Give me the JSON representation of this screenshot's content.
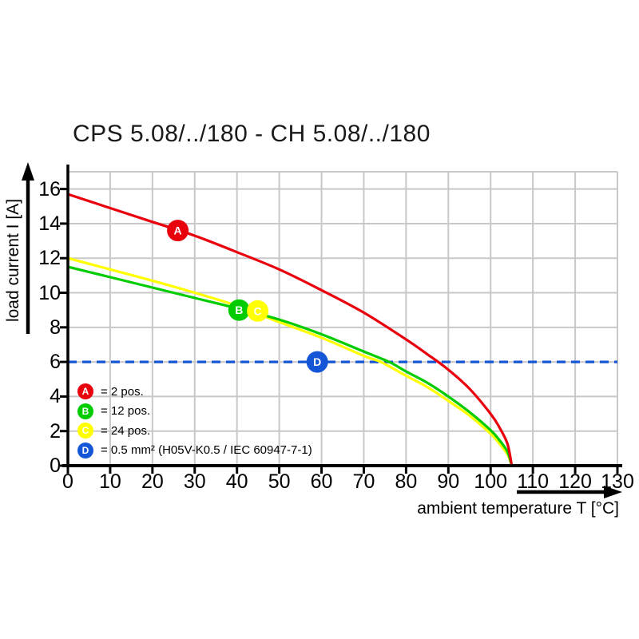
{
  "title": "CPS 5.08/../180 - CH 5.08/../180",
  "chart_data": {
    "type": "line",
    "title": "CPS 5.08/../180 - CH 5.08/../180",
    "xlabel": "ambient temperature T [°C]",
    "ylabel": "load current I [A]",
    "xlim": [
      0,
      130
    ],
    "ylim": [
      0,
      17
    ],
    "x_ticks": [
      0,
      10,
      20,
      30,
      40,
      50,
      60,
      70,
      80,
      90,
      100,
      110,
      120,
      130
    ],
    "y_ticks": [
      0,
      2,
      4,
      6,
      8,
      10,
      12,
      14,
      16
    ],
    "grid": true,
    "legend_position": "inside-lower-left",
    "series": [
      {
        "name": "A",
        "label": "2 pos.",
        "color": "#e8000d",
        "line_style": "solid",
        "points": [
          [
            0,
            15.7
          ],
          [
            10,
            14.9
          ],
          [
            20,
            14.1
          ],
          [
            30,
            13.3
          ],
          [
            40,
            12.35
          ],
          [
            50,
            11.35
          ],
          [
            60,
            10.15
          ],
          [
            70,
            8.85
          ],
          [
            80,
            7.3
          ],
          [
            85,
            6.45
          ],
          [
            90,
            5.55
          ],
          [
            95,
            4.45
          ],
          [
            100,
            3.0
          ],
          [
            102,
            2.25
          ],
          [
            104,
            1.25
          ],
          [
            105,
            0
          ]
        ]
      },
      {
        "name": "B",
        "label": "12 pos.",
        "color": "#00cc00",
        "line_style": "solid",
        "points": [
          [
            0,
            11.5
          ],
          [
            10,
            10.9
          ],
          [
            20,
            10.3
          ],
          [
            30,
            9.7
          ],
          [
            40,
            9.1
          ],
          [
            50,
            8.45
          ],
          [
            60,
            7.6
          ],
          [
            70,
            6.6
          ],
          [
            76,
            6.0
          ],
          [
            80,
            5.45
          ],
          [
            85,
            4.8
          ],
          [
            90,
            4.0
          ],
          [
            95,
            3.1
          ],
          [
            100,
            2.05
          ],
          [
            102,
            1.5
          ],
          [
            104,
            0.8
          ],
          [
            105,
            0
          ]
        ]
      },
      {
        "name": "C",
        "label": "24 pos.",
        "color": "#ffff00",
        "line_style": "solid",
        "points": [
          [
            0,
            12.0
          ],
          [
            10,
            11.35
          ],
          [
            20,
            10.7
          ],
          [
            30,
            10.0
          ],
          [
            40,
            9.25
          ],
          [
            50,
            8.3
          ],
          [
            60,
            7.4
          ],
          [
            70,
            6.35
          ],
          [
            74,
            6.0
          ],
          [
            80,
            5.2
          ],
          [
            85,
            4.55
          ],
          [
            90,
            3.75
          ],
          [
            95,
            2.9
          ],
          [
            100,
            1.85
          ],
          [
            102,
            1.3
          ],
          [
            104,
            0.65
          ],
          [
            105,
            0
          ]
        ]
      },
      {
        "name": "D",
        "label": "0.5 mm² (H05V-K0.5 / IEC 60947-7-1)",
        "color": "#1556d6",
        "line_style": "dashed",
        "points": [
          [
            0,
            6
          ],
          [
            130,
            6
          ]
        ]
      }
    ],
    "markers": [
      {
        "label": "A",
        "x": 26,
        "y": 13.6,
        "color": "#e8000d"
      },
      {
        "label": "B",
        "x": 40.5,
        "y": 9.0,
        "color": "#00cc00"
      },
      {
        "label": "C",
        "x": 44.9,
        "y": 8.95,
        "color": "#ffff00"
      },
      {
        "label": "D",
        "x": 59,
        "y": 6.0,
        "color": "#1556d6"
      }
    ],
    "legend": [
      {
        "key": "A",
        "color": "#e8000d",
        "text": "= 2 pos."
      },
      {
        "key": "B",
        "color": "#00cc00",
        "text": "= 12 pos."
      },
      {
        "key": "C",
        "color": "#ffff00",
        "text": "= 24 pos."
      },
      {
        "key": "D",
        "color": "#1556d6",
        "text": "= 0.5 mm² (H05V-K0.5 / IEC 60947-7-1)"
      }
    ],
    "colors": {
      "grid": "#c8c8c8",
      "axis": "#000000",
      "text": "#000000",
      "background": "#ffffff"
    }
  }
}
